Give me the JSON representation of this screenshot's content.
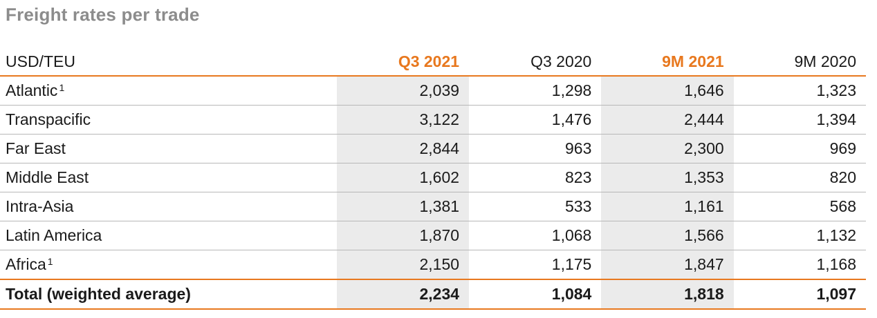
{
  "title": "Freight rates per trade",
  "table": {
    "unit_label": "USD/TEU",
    "columns": [
      "Q3 2021",
      "Q3 2020",
      "9M 2021",
      "9M 2020"
    ],
    "highlight_color": "#e8781e",
    "rows": [
      {
        "label": "Atlantic",
        "footnote": "1",
        "values": [
          "2,039",
          "1,298",
          "1,646",
          "1,323"
        ]
      },
      {
        "label": "Transpacific",
        "footnote": "",
        "values": [
          "3,122",
          "1,476",
          "2,444",
          "1,394"
        ]
      },
      {
        "label": "Far East",
        "footnote": "",
        "values": [
          "2,844",
          "963",
          "2,300",
          "969"
        ]
      },
      {
        "label": "Middle East",
        "footnote": "",
        "values": [
          "1,602",
          "823",
          "1,353",
          "820"
        ]
      },
      {
        "label": "Intra-Asia",
        "footnote": "",
        "values": [
          "1,381",
          "533",
          "1,161",
          "568"
        ]
      },
      {
        "label": "Latin America",
        "footnote": "",
        "values": [
          "1,870",
          "1,068",
          "1,566",
          "1,132"
        ]
      },
      {
        "label": "Africa",
        "footnote": "1",
        "values": [
          "2,150",
          "1,175",
          "1,847",
          "1,168"
        ]
      }
    ],
    "total": {
      "label": "Total (weighted average)",
      "values": [
        "2,234",
        "1,084",
        "1,818",
        "1,097"
      ]
    }
  }
}
